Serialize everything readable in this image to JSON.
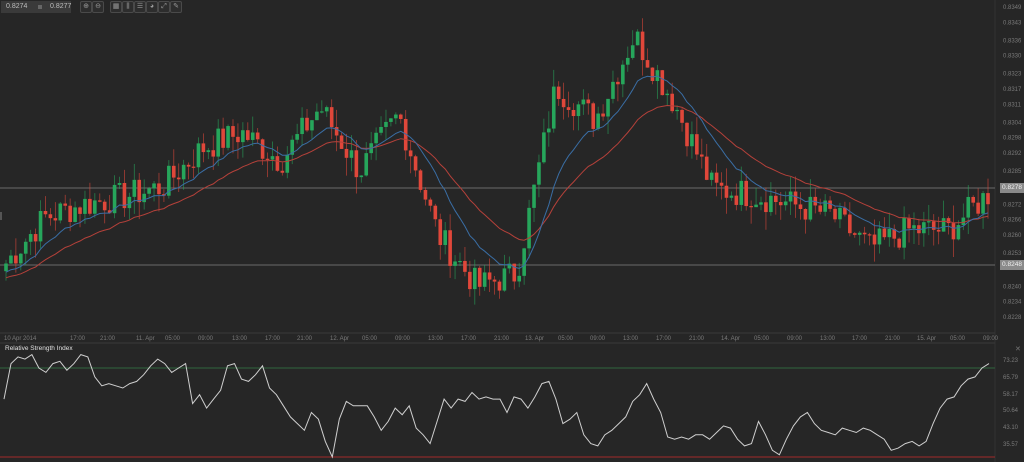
{
  "toolbar": {
    "bid": "0.8274",
    "ask": "0.8277",
    "buttons": [
      {
        "name": "zoom-in",
        "glyph": "⊕"
      },
      {
        "name": "zoom-out",
        "glyph": "⊖"
      },
      {
        "name": "timeframe",
        "glyph": "▦"
      },
      {
        "name": "chart-type",
        "glyph": "⫼"
      },
      {
        "name": "indicators",
        "glyph": "☰"
      },
      {
        "name": "objects",
        "glyph": "◕"
      },
      {
        "name": "tools",
        "glyph": "⤢"
      },
      {
        "name": "draw",
        "glyph": "✎"
      }
    ]
  },
  "price_axis": {
    "ticks": [
      "0.8349",
      "0.8343",
      "0.8336",
      "0.8330",
      "0.8323",
      "0.8317",
      "0.8311",
      "0.8304",
      "0.8298",
      "0.8292",
      "0.8285",
      "0.8272",
      "0.8266",
      "0.8260",
      "0.8253",
      "0.8240",
      "0.8234",
      "0.8228"
    ],
    "current_price_tag": "0.8278",
    "support_tag": "0.8248"
  },
  "time_axis": {
    "labels": [
      "10 Apr 2014",
      "17:00",
      "21:00",
      "11. Apr",
      "05:00",
      "09:00",
      "13:00",
      "17:00",
      "21:00",
      "12. Apr",
      "05:00",
      "09:00",
      "13:00",
      "17:00",
      "21:00",
      "13. Apr",
      "05:00",
      "09:00",
      "13:00",
      "17:00",
      "21:00",
      "14. Apr",
      "05:00",
      "09:00",
      "13:00",
      "17:00",
      "21:00",
      "15. Apr",
      "05:00",
      "09:00"
    ]
  },
  "rsi": {
    "title": "Relative Strength Index",
    "ticks": [
      "73.23",
      "65.79",
      "58.17",
      "50.64",
      "43.10",
      "35.57"
    ],
    "overbought": 70,
    "oversold": 30,
    "close_glyph": "✕"
  },
  "colors": {
    "bg": "#262626",
    "bull": "#26a65b",
    "bear": "#e0473a",
    "ma_fast": "#3a6ea5",
    "ma_slow": "#b5413a",
    "rsi_line": "#cfcfcf",
    "ob_line": "#2f5a3a",
    "os_line": "#8a2a2a",
    "hline": "#6a6a6a"
  },
  "chart_data": [
    {
      "type": "candlestick",
      "title": "",
      "xlabel": "",
      "ylabel": "",
      "ylim": [
        0.8225,
        0.8352
      ],
      "x_range": [
        "10 Apr 2014 ~13:00",
        "15 Apr 2014 ~10:00"
      ],
      "horizontal_lines": [
        0.8278,
        0.8248
      ],
      "overlays": [
        {
          "name": "MA fast",
          "color": "#3a6ea5"
        },
        {
          "name": "MA slow",
          "color": "#b5413a"
        }
      ],
      "approx_close_path": [
        {
          "t": "10 Apr 13:00",
          "v": 0.8249
        },
        {
          "t": "10 Apr 17:00",
          "v": 0.8267
        },
        {
          "t": "10 Apr 21:00",
          "v": 0.8272
        },
        {
          "t": "11 Apr 05:00",
          "v": 0.8275
        },
        {
          "t": "11 Apr 09:00",
          "v": 0.8279
        },
        {
          "t": "11 Apr 13:00",
          "v": 0.8294
        },
        {
          "t": "11 Apr 17:00",
          "v": 0.83
        },
        {
          "t": "11 Apr 21:00",
          "v": 0.8289
        },
        {
          "t": "12 Apr 05:00",
          "v": 0.831
        },
        {
          "t": "12 Apr 09:00",
          "v": 0.8285
        },
        {
          "t": "12 Apr 13:00",
          "v": 0.8307
        },
        {
          "t": "12 Apr 17:00",
          "v": 0.826
        },
        {
          "t": "12 Apr 21:00",
          "v": 0.824
        },
        {
          "t": "13 Apr 05:00",
          "v": 0.8245
        },
        {
          "t": "13 Apr 09:00",
          "v": 0.8318
        },
        {
          "t": "13 Apr 13:00",
          "v": 0.8305
        },
        {
          "t": "13 Apr 17:00",
          "v": 0.8338
        },
        {
          "t": "13 Apr 21:00",
          "v": 0.8312
        },
        {
          "t": "14 Apr 00:00",
          "v": 0.8278
        },
        {
          "t": "14 Apr 05:00",
          "v": 0.8276
        },
        {
          "t": "14 Apr 09:00",
          "v": 0.8272
        },
        {
          "t": "14 Apr 13:00",
          "v": 0.8268
        },
        {
          "t": "14 Apr 17:00",
          "v": 0.8255
        },
        {
          "t": "14 Apr 21:00",
          "v": 0.8262
        },
        {
          "t": "15 Apr 05:00",
          "v": 0.8262
        },
        {
          "t": "15 Apr 09:00",
          "v": 0.8276
        }
      ]
    },
    {
      "type": "line",
      "title": "Relative Strength Index",
      "ylim": [
        28,
        76
      ],
      "levels": {
        "overbought": 70,
        "oversold": 30
      },
      "yticks": [
        73.23,
        65.79,
        58.17,
        50.64,
        43.1,
        35.57
      ],
      "approx_values": [
        56,
        72,
        75,
        74,
        76,
        70,
        68,
        72,
        73,
        69,
        72,
        76,
        75,
        66,
        62,
        63,
        62,
        61,
        63,
        64,
        67,
        71,
        74,
        72,
        68,
        70,
        72,
        54,
        58,
        52,
        56,
        60,
        71,
        72,
        65,
        64,
        67,
        71,
        61,
        58,
        53,
        48,
        45,
        42,
        50,
        47,
        37,
        30,
        47,
        55,
        53,
        53,
        53,
        48,
        42,
        46,
        52,
        49,
        53,
        43,
        40,
        36,
        46,
        56,
        52,
        56,
        55,
        59,
        56,
        57,
        56,
        56,
        50,
        57,
        56,
        52,
        57,
        63,
        64,
        56,
        45,
        47,
        50,
        40,
        36,
        35,
        40,
        42,
        45,
        48,
        55,
        58,
        63,
        56,
        50,
        39,
        38,
        39,
        38,
        40,
        40,
        38,
        41,
        44,
        43,
        38,
        35,
        36,
        46,
        40,
        33,
        31,
        38,
        44,
        48,
        50,
        45,
        42,
        41,
        40,
        43,
        42,
        41,
        43,
        42,
        40,
        38,
        33,
        34,
        36,
        37,
        35,
        37,
        45,
        52,
        56,
        57,
        62,
        65,
        66,
        70,
        72
      ]
    }
  ]
}
